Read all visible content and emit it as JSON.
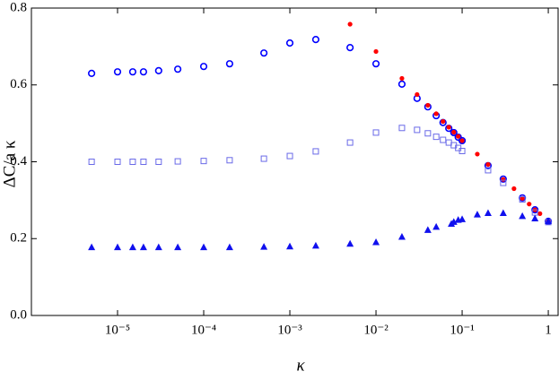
{
  "chart_data": {
    "type": "scatter",
    "xlabel": "κ",
    "ylabel": "ΔC/a κ",
    "xscale": "log",
    "xlim": [
      1e-06,
      1.3
    ],
    "ylim": [
      0,
      0.8
    ],
    "xticks": [
      {
        "value": 1e-05,
        "label": "10⁻⁵"
      },
      {
        "value": 0.0001,
        "label": "10⁻⁴"
      },
      {
        "value": 0.001,
        "label": "10⁻³"
      },
      {
        "value": 0.01,
        "label": "10⁻²"
      },
      {
        "value": 0.1,
        "label": "10⁻¹"
      },
      1
    ],
    "yticks": [
      {
        "value": 0,
        "label": "0.0"
      },
      0.2,
      0.4,
      0.6,
      0.8
    ],
    "series": [
      {
        "marker": "circle-open",
        "color": "#0000ff",
        "x": [
          5e-06,
          1e-05,
          1.5e-05,
          2e-05,
          3e-05,
          5e-05,
          0.0001,
          0.0002,
          0.0005,
          0.001,
          0.002,
          0.005,
          0.01,
          0.02,
          0.03,
          0.04,
          0.05,
          0.06,
          0.07,
          0.08,
          0.09,
          0.1,
          0.2,
          0.3,
          0.5,
          0.7,
          1
        ],
        "values": [
          0.63,
          0.634,
          0.634,
          0.634,
          0.637,
          0.641,
          0.648,
          0.655,
          0.683,
          0.709,
          0.718,
          0.697,
          0.655,
          0.602,
          0.565,
          0.543,
          0.52,
          0.502,
          0.487,
          0.476,
          0.464,
          0.455,
          0.39,
          0.355,
          0.306,
          0.275,
          0.245
        ]
      },
      {
        "marker": "dot",
        "color": "#ff0000",
        "x": [
          0.005,
          0.01,
          0.02,
          0.03,
          0.04,
          0.05,
          0.06,
          0.07,
          0.08,
          0.09,
          0.1,
          0.15,
          0.2,
          0.3,
          0.4,
          0.5,
          0.6,
          0.7,
          0.8,
          1
        ],
        "values": [
          0.758,
          0.687,
          0.617,
          0.575,
          0.547,
          0.525,
          0.505,
          0.49,
          0.477,
          0.466,
          0.455,
          0.42,
          0.393,
          0.354,
          0.33,
          0.305,
          0.29,
          0.275,
          0.265,
          0.245
        ]
      },
      {
        "marker": "square-open",
        "color": "#6a6ae8",
        "x": [
          5e-06,
          1e-05,
          1.5e-05,
          2e-05,
          3e-05,
          5e-05,
          0.0001,
          0.0002,
          0.0005,
          0.001,
          0.002,
          0.005,
          0.01,
          0.02,
          0.03,
          0.04,
          0.05,
          0.06,
          0.07,
          0.08,
          0.09,
          0.1,
          0.2,
          0.3,
          0.5,
          0.7,
          1
        ],
        "values": [
          0.4,
          0.4,
          0.4,
          0.4,
          0.4,
          0.401,
          0.402,
          0.404,
          0.408,
          0.415,
          0.427,
          0.45,
          0.476,
          0.488,
          0.483,
          0.474,
          0.465,
          0.457,
          0.45,
          0.443,
          0.436,
          0.428,
          0.378,
          0.345,
          0.302,
          0.268,
          0.243
        ]
      },
      {
        "marker": "triangle",
        "color": "#1010ee",
        "x": [
          5e-06,
          1e-05,
          1.5e-05,
          2e-05,
          3e-05,
          5e-05,
          0.0001,
          0.0002,
          0.0005,
          0.001,
          0.002,
          0.005,
          0.01,
          0.02,
          0.04,
          0.05,
          0.075,
          0.08,
          0.09,
          0.1,
          0.15,
          0.2,
          0.3,
          0.5,
          0.7,
          1
        ],
        "values": [
          0.177,
          0.177,
          0.177,
          0.177,
          0.177,
          0.177,
          0.177,
          0.177,
          0.178,
          0.179,
          0.181,
          0.186,
          0.19,
          0.204,
          0.222,
          0.23,
          0.238,
          0.243,
          0.248,
          0.25,
          0.262,
          0.266,
          0.266,
          0.258,
          0.252,
          0.245
        ]
      }
    ]
  }
}
